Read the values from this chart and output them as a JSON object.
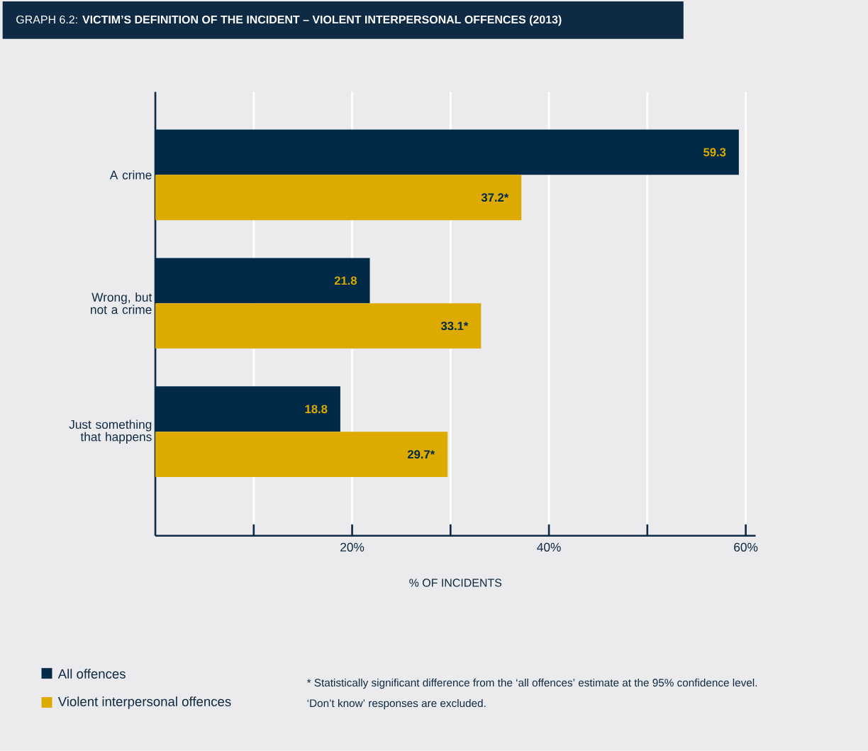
{
  "chart_data": {
    "type": "bar",
    "orientation": "horizontal",
    "title": "GRAPH 6.2: **VICTIM’S DEFINITION OF THE INCIDENT – VIOLENT INTERPERSONAL OFFENCES (2013)**",
    "xlabel": "% OF INCIDENTS",
    "categories": [
      "A crime",
      "Wrong, but not a crime",
      "Just something that happens"
    ],
    "series": [
      {
        "name": "All offences",
        "color": "#002a47",
        "values": [
          59.3,
          21.8,
          18.8
        ],
        "value_labels": [
          "59.3",
          "21.8",
          "18.8"
        ]
      },
      {
        "name": "Violent interpersonal offences",
        "color": "#ddaa00",
        "values": [
          37.2,
          33.1,
          29.7
        ],
        "value_labels": [
          "37.2*",
          "33.1*",
          "29.7*"
        ]
      }
    ],
    "xlim": [
      0,
      61
    ],
    "xticks": [
      {
        "value": 10,
        "label": null
      },
      {
        "value": 20,
        "label": "20%"
      },
      {
        "value": 30,
        "label": null
      },
      {
        "value": 40,
        "label": "40%"
      },
      {
        "value": 50,
        "label": null
      },
      {
        "value": 60,
        "label": "60%"
      }
    ],
    "grid": "x",
    "legend": "bottom left",
    "annotations": [
      "*     Statistically significant difference from the ‘all offences’ estimate at the 95% confidence level.",
      "‘Don’t know’ responses are excluded."
    ]
  }
}
